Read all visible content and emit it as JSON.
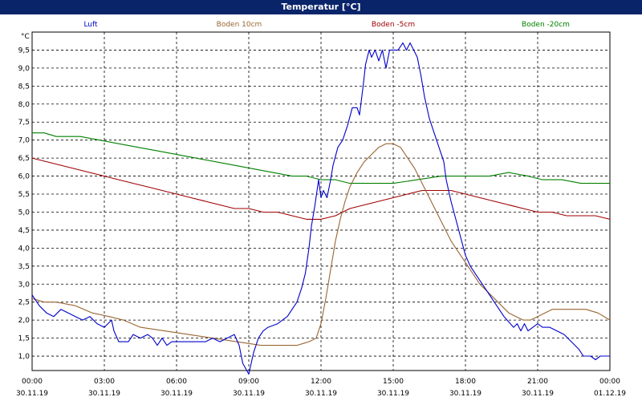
{
  "window": {
    "title": "Temperatur [°C]"
  },
  "chart_data": {
    "type": "line",
    "title": "Temperatur [°C]",
    "ylabel": "°C",
    "ylim": [
      0.6,
      10.0
    ],
    "y_ticks": [
      "1,0",
      "1,5",
      "2,0",
      "2,5",
      "3,0",
      "3,5",
      "4,0",
      "4,5",
      "5,0",
      "5,5",
      "6,0",
      "6,5",
      "7,0",
      "7,5",
      "8,0",
      "8,5",
      "9,0",
      "9,5"
    ],
    "x_range_hours": [
      0,
      24
    ],
    "x_ticks": [
      {
        "hour": 0,
        "time": "00:00",
        "date": "30.11.19"
      },
      {
        "hour": 3,
        "time": "03:00",
        "date": "30.11.19"
      },
      {
        "hour": 6,
        "time": "06:00",
        "date": "30.11.19"
      },
      {
        "hour": 9,
        "time": "09:00",
        "date": "30.11.19"
      },
      {
        "hour": 12,
        "time": "12:00",
        "date": "30.11.19"
      },
      {
        "hour": 15,
        "time": "15:00",
        "date": "30.11.19"
      },
      {
        "hour": 18,
        "time": "18:00",
        "date": "30.11.19"
      },
      {
        "hour": 21,
        "time": "21:00",
        "date": "30.11.19"
      },
      {
        "hour": 24,
        "time": "00:00",
        "date": "01.12.19"
      }
    ],
    "grid": true,
    "legend": "top",
    "series": [
      {
        "name": "Luft",
        "color": "#0000cc",
        "points": [
          [
            0,
            2.7
          ],
          [
            0.3,
            2.4
          ],
          [
            0.6,
            2.2
          ],
          [
            0.9,
            2.1
          ],
          [
            1.2,
            2.3
          ],
          [
            1.5,
            2.2
          ],
          [
            1.8,
            2.1
          ],
          [
            2.1,
            2.0
          ],
          [
            2.4,
            2.1
          ],
          [
            2.7,
            1.9
          ],
          [
            3.0,
            1.8
          ],
          [
            3.3,
            2.0
          ],
          [
            3.4,
            1.7
          ],
          [
            3.6,
            1.4
          ],
          [
            3.8,
            1.4
          ],
          [
            4.0,
            1.4
          ],
          [
            4.2,
            1.6
          ],
          [
            4.5,
            1.5
          ],
          [
            4.8,
            1.6
          ],
          [
            5.0,
            1.5
          ],
          [
            5.2,
            1.3
          ],
          [
            5.4,
            1.5
          ],
          [
            5.6,
            1.3
          ],
          [
            5.8,
            1.4
          ],
          [
            6.2,
            1.4
          ],
          [
            6.6,
            1.4
          ],
          [
            6.9,
            1.4
          ],
          [
            7.2,
            1.4
          ],
          [
            7.5,
            1.5
          ],
          [
            7.8,
            1.4
          ],
          [
            8.1,
            1.5
          ],
          [
            8.4,
            1.6
          ],
          [
            8.6,
            1.3
          ],
          [
            8.75,
            0.8
          ],
          [
            9.0,
            0.5
          ],
          [
            9.2,
            1.1
          ],
          [
            9.4,
            1.5
          ],
          [
            9.6,
            1.7
          ],
          [
            9.8,
            1.8
          ],
          [
            10.0,
            1.85
          ],
          [
            10.2,
            1.9
          ],
          [
            10.4,
            2.0
          ],
          [
            10.6,
            2.1
          ],
          [
            10.8,
            2.3
          ],
          [
            11.0,
            2.5
          ],
          [
            11.2,
            2.9
          ],
          [
            11.35,
            3.3
          ],
          [
            11.5,
            4.0
          ],
          [
            11.6,
            4.6
          ],
          [
            11.75,
            5.2
          ],
          [
            11.9,
            5.9
          ],
          [
            12.0,
            5.4
          ],
          [
            12.1,
            5.6
          ],
          [
            12.25,
            5.4
          ],
          [
            12.4,
            5.9
          ],
          [
            12.5,
            6.3
          ],
          [
            12.7,
            6.8
          ],
          [
            12.9,
            7.0
          ],
          [
            13.1,
            7.4
          ],
          [
            13.3,
            7.9
          ],
          [
            13.5,
            7.9
          ],
          [
            13.6,
            7.7
          ],
          [
            13.75,
            8.5
          ],
          [
            13.85,
            9.1
          ],
          [
            14.0,
            9.5
          ],
          [
            14.1,
            9.3
          ],
          [
            14.25,
            9.5
          ],
          [
            14.4,
            9.2
          ],
          [
            14.55,
            9.5
          ],
          [
            14.7,
            9.0
          ],
          [
            14.85,
            9.5
          ],
          [
            15.0,
            9.5
          ],
          [
            15.2,
            9.5
          ],
          [
            15.4,
            9.7
          ],
          [
            15.55,
            9.5
          ],
          [
            15.7,
            9.7
          ],
          [
            15.85,
            9.5
          ],
          [
            16.0,
            9.3
          ],
          [
            16.15,
            8.8
          ],
          [
            16.3,
            8.2
          ],
          [
            16.5,
            7.6
          ],
          [
            16.7,
            7.2
          ],
          [
            16.9,
            6.8
          ],
          [
            17.1,
            6.4
          ],
          [
            17.2,
            5.9
          ],
          [
            17.4,
            5.3
          ],
          [
            17.6,
            4.8
          ],
          [
            17.8,
            4.3
          ],
          [
            18.0,
            3.8
          ],
          [
            18.2,
            3.5
          ],
          [
            18.4,
            3.3
          ],
          [
            18.6,
            3.1
          ],
          [
            18.8,
            2.9
          ],
          [
            19.0,
            2.7
          ],
          [
            19.2,
            2.5
          ],
          [
            19.4,
            2.3
          ],
          [
            19.6,
            2.1
          ],
          [
            19.8,
            1.95
          ],
          [
            20.0,
            1.8
          ],
          [
            20.15,
            1.9
          ],
          [
            20.3,
            1.7
          ],
          [
            20.45,
            1.9
          ],
          [
            20.6,
            1.7
          ],
          [
            20.8,
            1.8
          ],
          [
            21.0,
            1.9
          ],
          [
            21.2,
            1.8
          ],
          [
            21.5,
            1.8
          ],
          [
            21.8,
            1.7
          ],
          [
            22.1,
            1.6
          ],
          [
            22.4,
            1.4
          ],
          [
            22.7,
            1.2
          ],
          [
            22.9,
            1.0
          ],
          [
            23.2,
            1.0
          ],
          [
            23.4,
            0.9
          ],
          [
            23.6,
            1.0
          ],
          [
            23.8,
            1.0
          ],
          [
            24.0,
            1.0
          ]
        ]
      },
      {
        "name": "Boden 10cm",
        "color": "#996633",
        "points": [
          [
            0,
            2.6
          ],
          [
            0.5,
            2.5
          ],
          [
            1.0,
            2.5
          ],
          [
            1.8,
            2.4
          ],
          [
            2.5,
            2.2
          ],
          [
            3.2,
            2.1
          ],
          [
            3.8,
            2.0
          ],
          [
            4.5,
            1.8
          ],
          [
            5.5,
            1.7
          ],
          [
            6.5,
            1.6
          ],
          [
            7.5,
            1.5
          ],
          [
            8.5,
            1.4
          ],
          [
            9.5,
            1.3
          ],
          [
            10.5,
            1.3
          ],
          [
            11.0,
            1.3
          ],
          [
            11.5,
            1.4
          ],
          [
            11.8,
            1.5
          ],
          [
            12.0,
            1.9
          ],
          [
            12.2,
            2.6
          ],
          [
            12.4,
            3.4
          ],
          [
            12.6,
            4.2
          ],
          [
            12.8,
            4.8
          ],
          [
            13.0,
            5.3
          ],
          [
            13.2,
            5.7
          ],
          [
            13.5,
            6.1
          ],
          [
            13.8,
            6.4
          ],
          [
            14.1,
            6.6
          ],
          [
            14.4,
            6.8
          ],
          [
            14.7,
            6.9
          ],
          [
            15.0,
            6.9
          ],
          [
            15.3,
            6.8
          ],
          [
            15.6,
            6.5
          ],
          [
            15.9,
            6.2
          ],
          [
            16.2,
            5.8
          ],
          [
            16.5,
            5.4
          ],
          [
            16.8,
            5.0
          ],
          [
            17.1,
            4.6
          ],
          [
            17.4,
            4.2
          ],
          [
            17.7,
            3.9
          ],
          [
            18.0,
            3.6
          ],
          [
            18.3,
            3.3
          ],
          [
            18.6,
            3.0
          ],
          [
            18.9,
            2.8
          ],
          [
            19.2,
            2.6
          ],
          [
            19.5,
            2.4
          ],
          [
            19.8,
            2.2
          ],
          [
            20.1,
            2.1
          ],
          [
            20.4,
            2.0
          ],
          [
            20.7,
            2.0
          ],
          [
            21.0,
            2.1
          ],
          [
            21.3,
            2.2
          ],
          [
            21.6,
            2.3
          ],
          [
            22.0,
            2.3
          ],
          [
            22.5,
            2.3
          ],
          [
            23.0,
            2.3
          ],
          [
            23.5,
            2.2
          ],
          [
            24.0,
            2.0
          ]
        ]
      },
      {
        "name": "Boden -5cm",
        "color": "#a00000",
        "points": [
          [
            0,
            6.5
          ],
          [
            0.6,
            6.4
          ],
          [
            1.2,
            6.3
          ],
          [
            1.8,
            6.2
          ],
          [
            2.4,
            6.1
          ],
          [
            3.0,
            6.0
          ],
          [
            3.6,
            5.9
          ],
          [
            4.2,
            5.8
          ],
          [
            4.8,
            5.7
          ],
          [
            5.4,
            5.6
          ],
          [
            6.0,
            5.5
          ],
          [
            6.6,
            5.4
          ],
          [
            7.2,
            5.3
          ],
          [
            7.8,
            5.2
          ],
          [
            8.4,
            5.1
          ],
          [
            9.0,
            5.1
          ],
          [
            9.6,
            5.0
          ],
          [
            10.2,
            5.0
          ],
          [
            10.8,
            4.9
          ],
          [
            11.4,
            4.8
          ],
          [
            12.0,
            4.8
          ],
          [
            12.6,
            4.9
          ],
          [
            13.2,
            5.1
          ],
          [
            13.8,
            5.2
          ],
          [
            14.4,
            5.3
          ],
          [
            15.0,
            5.4
          ],
          [
            15.6,
            5.5
          ],
          [
            16.2,
            5.6
          ],
          [
            16.8,
            5.6
          ],
          [
            17.4,
            5.6
          ],
          [
            18.0,
            5.5
          ],
          [
            18.6,
            5.4
          ],
          [
            19.2,
            5.3
          ],
          [
            19.8,
            5.2
          ],
          [
            20.4,
            5.1
          ],
          [
            21.0,
            5.0
          ],
          [
            21.6,
            5.0
          ],
          [
            22.2,
            4.9
          ],
          [
            22.8,
            4.9
          ],
          [
            23.4,
            4.9
          ],
          [
            24.0,
            4.8
          ]
        ]
      },
      {
        "name": "Boden -20cm",
        "color": "#008000",
        "points": [
          [
            0,
            7.2
          ],
          [
            0.5,
            7.2
          ],
          [
            1.0,
            7.1
          ],
          [
            2.0,
            7.1
          ],
          [
            2.8,
            7.0
          ],
          [
            3.6,
            6.9
          ],
          [
            4.4,
            6.8
          ],
          [
            5.2,
            6.7
          ],
          [
            6.0,
            6.6
          ],
          [
            6.8,
            6.5
          ],
          [
            7.6,
            6.4
          ],
          [
            8.4,
            6.3
          ],
          [
            9.2,
            6.2
          ],
          [
            10.0,
            6.1
          ],
          [
            10.8,
            6.0
          ],
          [
            11.4,
            6.0
          ],
          [
            12.0,
            5.9
          ],
          [
            12.6,
            5.9
          ],
          [
            13.2,
            5.8
          ],
          [
            14.0,
            5.8
          ],
          [
            15.0,
            5.8
          ],
          [
            16.0,
            5.9
          ],
          [
            17.0,
            6.0
          ],
          [
            18.0,
            6.0
          ],
          [
            19.0,
            6.0
          ],
          [
            19.8,
            6.1
          ],
          [
            20.6,
            6.0
          ],
          [
            21.2,
            5.9
          ],
          [
            22.0,
            5.9
          ],
          [
            22.8,
            5.8
          ],
          [
            23.4,
            5.8
          ],
          [
            24.0,
            5.8
          ]
        ]
      }
    ]
  }
}
